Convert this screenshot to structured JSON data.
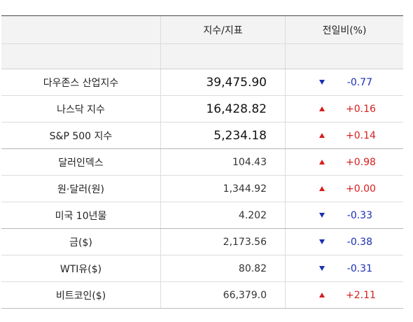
{
  "header": {
    "col_name": "",
    "col_value": "지수/지표",
    "col_change": "전일비(%)"
  },
  "colors": {
    "up": "#d41e1e",
    "down": "#1a2fb5"
  },
  "rows": [
    {
      "name": "다우존스 산업지수",
      "value": "39,475.90",
      "direction": "down",
      "arrow_icon": "down-triangle-icon",
      "change": "-0.77"
    },
    {
      "name": "나스닥 지수",
      "value": "16,428.82",
      "direction": "up",
      "arrow_icon": "up-triangle-icon",
      "change": "+0.16"
    },
    {
      "name": "S&P 500 지수",
      "value": "5,234.18",
      "direction": "up",
      "arrow_icon": "up-triangle-icon",
      "change": "+0.14"
    },
    {
      "name": "달러인덱스",
      "value": "104.43",
      "direction": "up",
      "arrow_icon": "up-triangle-icon",
      "change": "+0.98"
    },
    {
      "name": "원·달러(원)",
      "value": "1,344.92",
      "direction": "up",
      "arrow_icon": "up-triangle-icon",
      "change": "+0.00"
    },
    {
      "name": "미국 10년물",
      "value": "4.202",
      "direction": "down",
      "arrow_icon": "down-triangle-icon",
      "change": "-0.33"
    },
    {
      "name": "금($)",
      "value": "2,173.56",
      "direction": "down",
      "arrow_icon": "down-triangle-icon",
      "change": "-0.38"
    },
    {
      "name": "WTI유($)",
      "value": "80.82",
      "direction": "down",
      "arrow_icon": "down-triangle-icon",
      "change": "-0.31"
    },
    {
      "name": "비트코인($)",
      "value": "66,379.0",
      "direction": "up",
      "arrow_icon": "up-triangle-icon",
      "change": "+2.11"
    }
  ]
}
